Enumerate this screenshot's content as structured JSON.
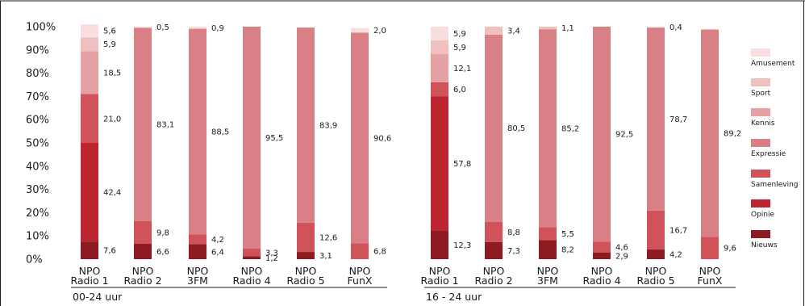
{
  "colors": {
    "Nieuws": "#8e1b22",
    "Opinie": "#bf2530",
    "Samenleving": "#cf5359",
    "Expressie": "#d98086",
    "Kennis": "#e6a1a4",
    "Sport": "#f0c0c1",
    "Amusement": "#f8dede"
  },
  "chart_data": [
    {
      "type": "bar",
      "stacked": true,
      "group_label": "00-24 uur",
      "ylim": [
        0,
        100
      ],
      "yticks": [
        "0%",
        "10%",
        "20%",
        "30%",
        "40%",
        "50%",
        "60%",
        "70%",
        "80%",
        "90%",
        "100%"
      ],
      "categories": [
        [
          "NPO",
          "Radio 1"
        ],
        [
          "NPO",
          "Radio 2"
        ],
        [
          "NPO",
          "3FM"
        ],
        [
          "NPO",
          "Radio 4"
        ],
        [
          "NPO",
          "Radio 5"
        ],
        [
          "NPO",
          "FunX"
        ]
      ],
      "series": [
        {
          "name": "Nieuws",
          "values": [
            7.6,
            6.6,
            6.4,
            1.2,
            3.1,
            0
          ],
          "labels": [
            "7,6",
            "6,6",
            "6,4",
            "1,2",
            "3,1",
            ""
          ]
        },
        {
          "name": "Opinie",
          "values": [
            42.4,
            0,
            0,
            0,
            0,
            0
          ],
          "labels": [
            "42,4",
            "",
            "",
            "",
            "",
            ""
          ]
        },
        {
          "name": "Samenleving",
          "values": [
            21.0,
            9.8,
            4.2,
            3.3,
            12.6,
            6.8
          ],
          "labels": [
            "21,0",
            "9,8",
            "4,2",
            "3,3",
            "12,6",
            "6,8"
          ]
        },
        {
          "name": "Expressie",
          "values": [
            0,
            83.1,
            88.5,
            95.5,
            83.9,
            90.6
          ],
          "labels": [
            "",
            "83,1",
            "88,5",
            "95,5",
            "83,9",
            "90,6"
          ]
        },
        {
          "name": "Kennis",
          "values": [
            18.5,
            0,
            0,
            0,
            0,
            0
          ],
          "labels": [
            "18,5",
            "",
            "",
            "",
            "",
            ""
          ]
        },
        {
          "name": "Sport",
          "values": [
            5.9,
            0,
            0,
            0,
            0,
            0
          ],
          "labels": [
            "5,9",
            "",
            "",
            "",
            "",
            ""
          ]
        },
        {
          "name": "Amusement",
          "values": [
            5.6,
            0.5,
            0.9,
            0,
            0,
            2.0
          ],
          "labels": [
            "5,6",
            "0,5",
            "0,9",
            "",
            "",
            "2,0"
          ]
        }
      ]
    },
    {
      "type": "bar",
      "stacked": true,
      "group_label": "16 - 24 uur",
      "ylim": [
        0,
        100
      ],
      "categories": [
        [
          "NPO",
          "Radio 1"
        ],
        [
          "NPO",
          "Radio 2"
        ],
        [
          "NPO",
          "3FM"
        ],
        [
          "NPO",
          "Radio 4"
        ],
        [
          "NPO",
          "Radio 5"
        ],
        [
          "NPO",
          "FunX"
        ]
      ],
      "series": [
        {
          "name": "Nieuws",
          "values": [
            12.3,
            7.3,
            8.2,
            2.9,
            4.2,
            0
          ],
          "labels": [
            "12,3",
            "7,3",
            "8,2",
            "2,9",
            "4,2",
            ""
          ]
        },
        {
          "name": "Opinie",
          "values": [
            57.8,
            0,
            0,
            0,
            0,
            0
          ],
          "labels": [
            "57,8",
            "",
            "",
            "",
            "",
            ""
          ]
        },
        {
          "name": "Samenleving",
          "values": [
            6.0,
            8.8,
            5.5,
            4.6,
            16.7,
            9.6
          ],
          "labels": [
            "6,0",
            "8,8",
            "5,5",
            "4,6",
            "16,7",
            "9,6"
          ]
        },
        {
          "name": "Expressie",
          "values": [
            0,
            80.5,
            85.2,
            92.5,
            78.7,
            89.2
          ],
          "labels": [
            "",
            "80,5",
            "85,2",
            "92,5",
            "78,7",
            "89,2"
          ]
        },
        {
          "name": "Kennis",
          "values": [
            12.1,
            0,
            0,
            0,
            0,
            0
          ],
          "labels": [
            "12,1",
            "",
            "",
            "",
            "",
            ""
          ]
        },
        {
          "name": "Sport",
          "values": [
            5.9,
            3.4,
            1.1,
            0,
            0,
            0
          ],
          "labels": [
            "5,9",
            "3,4",
            "1,1",
            "",
            "",
            ""
          ]
        },
        {
          "name": "Amusement",
          "values": [
            5.9,
            0,
            0,
            0,
            0.4,
            0
          ],
          "labels": [
            "5,9",
            "",
            "",
            "",
            "0,4",
            ""
          ]
        }
      ]
    }
  ],
  "legend": {
    "placement": "right",
    "entries": [
      "Amusement",
      "Sport",
      "Kennis",
      "Expressie",
      "Samenleving",
      "Opinie",
      "Nieuws"
    ]
  }
}
